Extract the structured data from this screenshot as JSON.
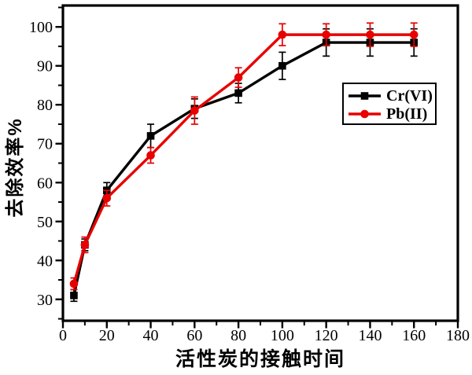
{
  "figure": {
    "background": "#ffffff",
    "frame_color": "#000000",
    "tick_label_color": "#000000"
  },
  "chart_data": {
    "type": "line",
    "title": "",
    "xlabel": "活性炭的接触时间",
    "ylabel": "去除效率%",
    "xlim": [
      0,
      180
    ],
    "ylim": [
      24.5,
      105.5
    ],
    "xticks": [
      0,
      20,
      40,
      60,
      80,
      100,
      120,
      140,
      160,
      180
    ],
    "xticks_minor": [
      10,
      30,
      50,
      70,
      90,
      110,
      130,
      150,
      170
    ],
    "yticks": [
      30,
      40,
      50,
      60,
      70,
      80,
      90,
      100
    ],
    "yticks_minor": [
      25,
      35,
      45,
      55,
      65,
      75,
      85,
      95,
      105
    ],
    "grid": false,
    "legend_position": "right-center",
    "x": [
      5,
      10,
      20,
      40,
      60,
      80,
      100,
      120,
      140,
      160
    ],
    "series": [
      {
        "name": "Cr(VI)",
        "color": "#000000",
        "marker": "square",
        "values": [
          31,
          44,
          58,
          72,
          79,
          83,
          90,
          96,
          96,
          96
        ],
        "errors": [
          1.5,
          1.5,
          2,
          3,
          2.5,
          2.5,
          3.5,
          3.5,
          3.5,
          3.5
        ]
      },
      {
        "name": "Pb(II)",
        "color": "#e80000",
        "marker": "circle",
        "values": [
          34,
          44,
          56,
          67,
          78.5,
          87,
          98,
          98,
          98,
          98
        ],
        "errors": [
          1.5,
          2,
          2,
          2,
          3.5,
          2.5,
          2.8,
          2.8,
          3,
          3
        ]
      }
    ]
  }
}
